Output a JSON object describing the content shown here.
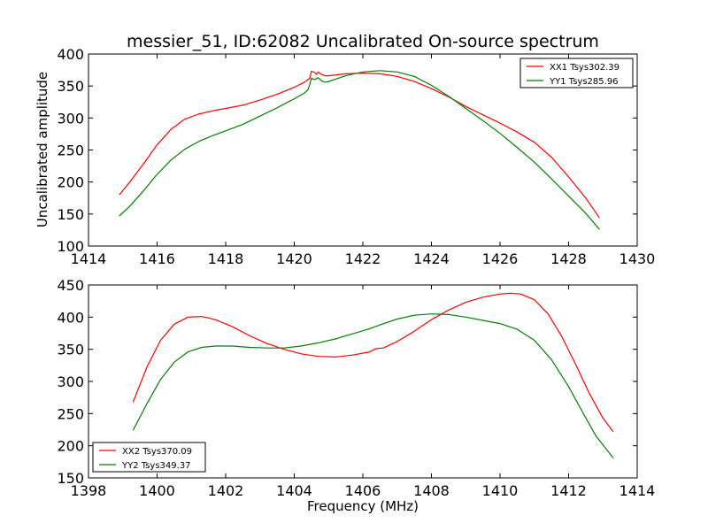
{
  "figure": {
    "title": "messier_51, ID:62082 Uncalibrated On-source spectrum",
    "ylabel": "Uncalibrated amplitude",
    "xlabel": "Frequency (MHz)"
  },
  "chart_data": [
    {
      "type": "line",
      "xlim": [
        1414,
        1430
      ],
      "ylim": [
        100,
        400
      ],
      "xticks": [
        1414,
        1416,
        1418,
        1420,
        1422,
        1424,
        1426,
        1428,
        1430
      ],
      "yticks": [
        100,
        150,
        200,
        250,
        300,
        350,
        400
      ],
      "legend": "top-right",
      "series": [
        {
          "name": "XX1 Tsys302.39",
          "color": "#ff0000",
          "points": [
            [
              1414.9,
              180
            ],
            [
              1415.2,
              200
            ],
            [
              1415.6,
              228
            ],
            [
              1416.0,
              258
            ],
            [
              1416.4,
              282
            ],
            [
              1416.8,
              298
            ],
            [
              1417.2,
              306
            ],
            [
              1417.6,
              311
            ],
            [
              1418.0,
              315
            ],
            [
              1418.5,
              320
            ],
            [
              1419.0,
              328
            ],
            [
              1419.5,
              337
            ],
            [
              1420.0,
              348
            ],
            [
              1420.3,
              356
            ],
            [
              1420.45,
              362
            ],
            [
              1420.5,
              373
            ],
            [
              1420.6,
              371
            ],
            [
              1420.65,
              368
            ],
            [
              1420.7,
              372
            ],
            [
              1420.8,
              368
            ],
            [
              1420.9,
              366
            ],
            [
              1421.0,
              366
            ],
            [
              1421.5,
              369
            ],
            [
              1422.0,
              370
            ],
            [
              1422.5,
              369
            ],
            [
              1423.0,
              365
            ],
            [
              1423.5,
              357
            ],
            [
              1424.0,
              346
            ],
            [
              1424.5,
              333
            ],
            [
              1425.0,
              318
            ],
            [
              1425.5,
              305
            ],
            [
              1426.0,
              292
            ],
            [
              1426.5,
              278
            ],
            [
              1427.0,
              262
            ],
            [
              1427.5,
              239
            ],
            [
              1428.0,
              208
            ],
            [
              1428.5,
              175
            ],
            [
              1428.9,
              144
            ]
          ]
        },
        {
          "name": "YY1 Tsys285.96",
          "color": "#008000",
          "points": [
            [
              1414.9,
              147
            ],
            [
              1415.2,
              162
            ],
            [
              1415.6,
              186
            ],
            [
              1416.0,
              212
            ],
            [
              1416.4,
              234
            ],
            [
              1416.8,
              251
            ],
            [
              1417.2,
              263
            ],
            [
              1417.6,
              272
            ],
            [
              1418.0,
              280
            ],
            [
              1418.5,
              290
            ],
            [
              1419.0,
              303
            ],
            [
              1419.5,
              316
            ],
            [
              1420.0,
              330
            ],
            [
              1420.3,
              339
            ],
            [
              1420.4,
              344
            ],
            [
              1420.45,
              352
            ],
            [
              1420.5,
              362
            ],
            [
              1420.6,
              360
            ],
            [
              1420.7,
              363
            ],
            [
              1420.8,
              358
            ],
            [
              1420.9,
              356
            ],
            [
              1421.0,
              357
            ],
            [
              1421.5,
              366
            ],
            [
              1422.0,
              372
            ],
            [
              1422.5,
              374
            ],
            [
              1423.0,
              372
            ],
            [
              1423.5,
              365
            ],
            [
              1424.0,
              351
            ],
            [
              1424.5,
              334
            ],
            [
              1425.0,
              315
            ],
            [
              1425.5,
              296
            ],
            [
              1426.0,
              276
            ],
            [
              1426.5,
              254
            ],
            [
              1427.0,
              231
            ],
            [
              1427.5,
              205
            ],
            [
              1428.0,
              178
            ],
            [
              1428.5,
              151
            ],
            [
              1428.9,
              126
            ]
          ]
        }
      ]
    },
    {
      "type": "line",
      "xlim": [
        1398,
        1414
      ],
      "ylim": [
        150,
        450
      ],
      "xticks": [
        1398,
        1400,
        1402,
        1404,
        1406,
        1408,
        1410,
        1412,
        1414
      ],
      "yticks": [
        150,
        200,
        250,
        300,
        350,
        400,
        450
      ],
      "legend": "bottom-left",
      "series": [
        {
          "name": "XX2 Tsys370.09",
          "color": "#ff0000",
          "points": [
            [
              1399.3,
              268
            ],
            [
              1399.7,
              322
            ],
            [
              1400.1,
              364
            ],
            [
              1400.5,
              389
            ],
            [
              1400.9,
              400
            ],
            [
              1401.3,
              401
            ],
            [
              1401.7,
              396
            ],
            [
              1402.2,
              385
            ],
            [
              1402.7,
              371
            ],
            [
              1403.2,
              359
            ],
            [
              1403.7,
              350
            ],
            [
              1404.2,
              343
            ],
            [
              1404.7,
              339
            ],
            [
              1405.2,
              338
            ],
            [
              1405.7,
              341
            ],
            [
              1406.2,
              346
            ],
            [
              1406.3,
              349
            ],
            [
              1406.4,
              351
            ],
            [
              1406.6,
              352
            ],
            [
              1407.0,
              362
            ],
            [
              1407.5,
              378
            ],
            [
              1408.0,
              396
            ],
            [
              1408.5,
              411
            ],
            [
              1409.0,
              423
            ],
            [
              1409.5,
              431
            ],
            [
              1410.0,
              436
            ],
            [
              1410.3,
              437
            ],
            [
              1410.6,
              436
            ],
            [
              1411.0,
              427
            ],
            [
              1411.4,
              405
            ],
            [
              1411.8,
              370
            ],
            [
              1412.2,
              327
            ],
            [
              1412.6,
              282
            ],
            [
              1413.0,
              243
            ],
            [
              1413.3,
              222
            ]
          ]
        },
        {
          "name": "YY2 Tsys349.37",
          "color": "#008000",
          "points": [
            [
              1399.3,
              224
            ],
            [
              1399.7,
              265
            ],
            [
              1400.1,
              303
            ],
            [
              1400.5,
              330
            ],
            [
              1400.9,
              346
            ],
            [
              1401.3,
              353
            ],
            [
              1401.7,
              355
            ],
            [
              1402.2,
              355
            ],
            [
              1402.7,
              353
            ],
            [
              1403.2,
              352
            ],
            [
              1403.7,
              352
            ],
            [
              1404.2,
              355
            ],
            [
              1404.7,
              360
            ],
            [
              1405.2,
              366
            ],
            [
              1405.7,
              374
            ],
            [
              1406.2,
              382
            ],
            [
              1406.5,
              388
            ],
            [
              1407.0,
              397
            ],
            [
              1407.5,
              403
            ],
            [
              1408.0,
              405
            ],
            [
              1408.5,
              404
            ],
            [
              1409.0,
              400
            ],
            [
              1409.5,
              395
            ],
            [
              1410.0,
              390
            ],
            [
              1410.5,
              381
            ],
            [
              1411.0,
              364
            ],
            [
              1411.5,
              334
            ],
            [
              1412.0,
              292
            ],
            [
              1412.4,
              253
            ],
            [
              1412.8,
              215
            ],
            [
              1413.3,
              181
            ]
          ]
        }
      ]
    }
  ]
}
